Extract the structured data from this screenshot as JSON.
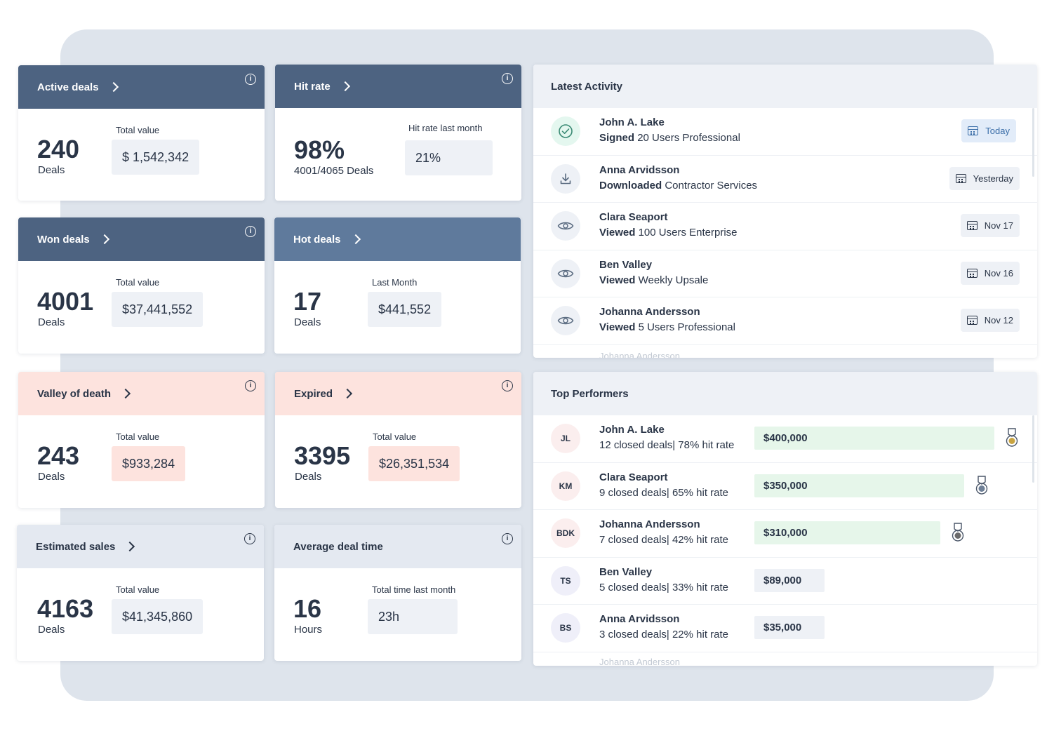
{
  "cards": {
    "active_deals": {
      "title": "Active deals",
      "number": "240",
      "unit": "Deals",
      "value_label": "Total value",
      "value": "$ 1,542,342"
    },
    "hit_rate": {
      "title": "Hit rate",
      "number": "98%",
      "unit": "4001/4065 Deals",
      "value_label": "Hit rate last month",
      "value": "21%"
    },
    "won_deals": {
      "title": "Won deals",
      "number": "4001",
      "unit": "Deals",
      "value_label": "Total value",
      "value": "$37,441,552"
    },
    "hot_deals": {
      "title": "Hot deals",
      "number": "17",
      "unit": "Deals",
      "value_label": "Last Month",
      "value": "$441,552"
    },
    "valley_of_death": {
      "title": "Valley of death",
      "number": "243",
      "unit": "Deals",
      "value_label": "Total value",
      "value": "$933,284"
    },
    "expired": {
      "title": "Expired",
      "number": "3395",
      "unit": "Deals",
      "value_label": "Total value",
      "value": "$26,351,534"
    },
    "estimated_sales": {
      "title": "Estimated sales",
      "number": "4163",
      "unit": "Deals",
      "value_label": "Total value",
      "value": "$41,345,860"
    },
    "average_deal_time": {
      "title": "Average deal time",
      "number": "16",
      "unit": "Hours",
      "value_label": "Total time last month",
      "value": "23h"
    }
  },
  "info_icon": "i",
  "latest_activity": {
    "title": "Latest Activity",
    "items": [
      {
        "name": "John A. Lake",
        "action": "Signed",
        "object": "20 Users Professional",
        "date": "Today",
        "icon": "check-circle-icon"
      },
      {
        "name": "Anna Arvidsson",
        "action": "Downloaded",
        "object": "Contractor Services",
        "date": "Yesterday",
        "icon": "download-icon"
      },
      {
        "name": "Clara Seaport",
        "action": "Viewed",
        "object": "100 Users Enterprise",
        "date": "Nov 17",
        "icon": "eye-icon"
      },
      {
        "name": "Ben Valley",
        "action": "Viewed",
        "object": "Weekly Upsale",
        "date": "Nov 16",
        "icon": "eye-icon"
      },
      {
        "name": "Johanna Andersson",
        "action": "Viewed",
        "object": "5 Users Professional",
        "date": "Nov 12",
        "icon": "eye-icon"
      }
    ],
    "overflow_name": "Johanna Andersson"
  },
  "top_performers": {
    "title": "Top Performers",
    "items": [
      {
        "initials": "JL",
        "name": "John A. Lake",
        "stats": "12 closed deals| 78% hit rate",
        "amount": "$400,000",
        "share": 1.0,
        "medal": "gold"
      },
      {
        "initials": "KM",
        "name": "Clara Seaport",
        "stats": "9 closed deals| 65% hit rate",
        "amount": "$350,000",
        "share": 0.875,
        "medal": "silver"
      },
      {
        "initials": "BDK",
        "name": "Johanna Andersson",
        "stats": "7 closed deals| 42% hit rate",
        "amount": "$310,000",
        "share": 0.775,
        "medal": "bronze"
      },
      {
        "initials": "TS",
        "name": "Ben Valley",
        "stats": "5 closed deals| 33% hit rate",
        "amount": "$89,000",
        "share": 0.22,
        "medal": ""
      },
      {
        "initials": "BS",
        "name": "Anna Arvidsson",
        "stats": "3 closed deals| 22% hit rate",
        "amount": "$35,000",
        "share": 0.09,
        "medal": ""
      }
    ],
    "overflow_name": "Johanna Andersson"
  },
  "colors": {
    "header_dark": "#4d6381",
    "header_mid": "#5f7a9c",
    "header_pink": "#fde3de",
    "header_light": "#e4e9f1",
    "bar_green": "#e6f6ea"
  }
}
